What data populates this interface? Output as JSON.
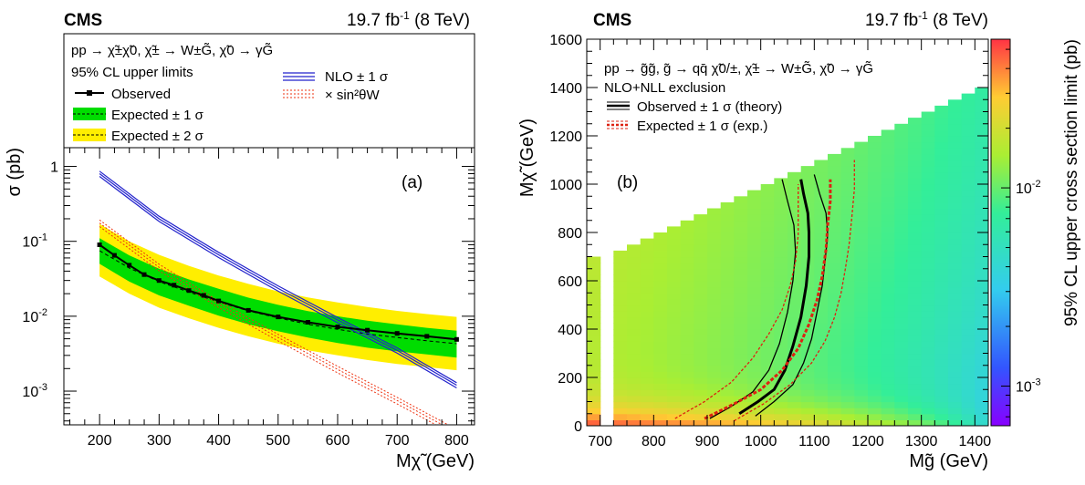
{
  "left": {
    "experiment": "CMS",
    "lumi": "19.7 fb",
    "lumi_sup": "-1",
    "energy": "(8 TeV)",
    "process": "pp → χ̃±χ̃0, χ̃± → W±G̃, χ̃0 → γG̃",
    "legend_header": "95% CL upper limits",
    "legend": {
      "observed": "Observed",
      "exp1": "Expected ± 1 σ",
      "exp2": "Expected ± 2 σ",
      "nlo": "NLO ± 1 σ",
      "sinw": "× sin²θW"
    },
    "panel_label": "(a)"
  },
  "right": {
    "experiment": "CMS",
    "lumi": "19.7 fb",
    "lumi_sup": "-1",
    "energy": "(8 TeV)",
    "process": "pp → g̃g̃, g̃ → qq̄ χ̃0/±, χ̃± → W±G̃, χ̃0 → γG̃",
    "legend_header": "NLO+NLL exclusion",
    "legend": {
      "observed": "Observed ± 1 σ (theory)",
      "expected": "Expected ± 1 σ (exp.)"
    },
    "panel_label": "(b)",
    "zlabel": "95% CL upper cross section limit (pb)"
  },
  "chart_data": [
    {
      "type": "line",
      "xlabel": "Mχ̃ (GeV)",
      "ylabel": "σ (pb)",
      "xlim": [
        140,
        830
      ],
      "ylim_log10": [
        -3.45,
        0.25
      ],
      "xticks": [
        200,
        300,
        400,
        500,
        600,
        700,
        800
      ],
      "yticks": [
        {
          "value": 1,
          "label": "1"
        },
        {
          "value": 0.1,
          "label": "10",
          "sup": "-1"
        },
        {
          "value": 0.01,
          "label": "10",
          "sup": "-2"
        },
        {
          "value": 0.001,
          "label": "10",
          "sup": "-3"
        }
      ],
      "series": [
        {
          "name": "Observed",
          "color": "#000000",
          "x": [
            200,
            225,
            250,
            275,
            300,
            325,
            350,
            375,
            400,
            450,
            500,
            550,
            600,
            650,
            700,
            750,
            800
          ],
          "y": [
            0.09,
            0.065,
            0.048,
            0.036,
            0.03,
            0.026,
            0.022,
            0.019,
            0.016,
            0.012,
            0.0098,
            0.0083,
            0.0072,
            0.0065,
            0.0059,
            0.0054,
            0.0049
          ]
        },
        {
          "name": "Expected",
          "color": "#000000",
          "x": [
            200,
            250,
            300,
            350,
            400,
            450,
            500,
            550,
            600,
            650,
            700,
            750,
            800
          ],
          "y": [
            0.075,
            0.044,
            0.029,
            0.021,
            0.0155,
            0.0118,
            0.0095,
            0.0078,
            0.0067,
            0.0058,
            0.0052,
            0.0047,
            0.0043
          ]
        },
        {
          "name": "Expected ± 1 σ",
          "color": "#00dd00",
          "x": [
            200,
            250,
            300,
            350,
            400,
            450,
            500,
            550,
            600,
            650,
            700,
            750,
            800
          ],
          "low": [
            0.05,
            0.029,
            0.019,
            0.0138,
            0.0102,
            0.0078,
            0.0063,
            0.0052,
            0.0044,
            0.0038,
            0.0034,
            0.0031,
            0.0028
          ],
          "high": [
            0.11,
            0.065,
            0.043,
            0.031,
            0.0232,
            0.0177,
            0.0142,
            0.0117,
            0.01,
            0.0087,
            0.0078,
            0.007,
            0.0064
          ]
        },
        {
          "name": "Expected ± 2 σ",
          "color": "#ffee00",
          "x": [
            200,
            250,
            300,
            350,
            400,
            450,
            500,
            550,
            600,
            650,
            700,
            750,
            800
          ],
          "low": [
            0.034,
            0.02,
            0.013,
            0.0094,
            0.007,
            0.0054,
            0.0043,
            0.0035,
            0.003,
            0.0026,
            0.0023,
            0.0021,
            0.0019
          ],
          "high": [
            0.17,
            0.1,
            0.066,
            0.047,
            0.035,
            0.027,
            0.0215,
            0.0178,
            0.0153,
            0.0133,
            0.0118,
            0.0107,
            0.0098
          ]
        },
        {
          "name": "NLO ± 1 σ",
          "color": "#2222cc",
          "x": [
            200,
            300,
            400,
            500,
            600,
            700,
            800
          ],
          "y": [
            0.8,
            0.2,
            0.066,
            0.0235,
            0.0089,
            0.0035,
            0.0012
          ]
        },
        {
          "name": "× sin²θW",
          "color": "#ee3311",
          "x": [
            200,
            300,
            400,
            500,
            600,
            700,
            800
          ],
          "y": [
            0.175,
            0.045,
            0.0145,
            0.0052,
            0.00195,
            0.00075,
            0.00028
          ]
        }
      ]
    },
    {
      "type": "heatmap",
      "xlabel": "Mg̃ (GeV)",
      "ylabel": "Mχ̃ (GeV)",
      "xlim": [
        675,
        1425
      ],
      "ylim": [
        0,
        1600
      ],
      "xticks": [
        700,
        800,
        900,
        1000,
        1100,
        1200,
        1300,
        1400
      ],
      "yticks": [
        0,
        200,
        400,
        600,
        800,
        1000,
        1200,
        1400,
        1600
      ],
      "zlim_log10": [
        -3.2,
        -1.25
      ],
      "zticks": [
        {
          "value": 0.01,
          "label": "10",
          "sup": "-2"
        },
        {
          "value": 0.001,
          "label": "10",
          "sup": "-3"
        }
      ],
      "grid_bin_width": 25,
      "top_edge": [
        [
          675,
          700
        ],
        [
          725,
          725
        ],
        [
          750,
          750
        ],
        [
          775,
          775
        ],
        [
          800,
          800
        ],
        [
          825,
          825
        ],
        [
          850,
          850
        ],
        [
          875,
          875
        ],
        [
          900,
          900
        ],
        [
          925,
          925
        ],
        [
          950,
          950
        ],
        [
          975,
          975
        ],
        [
          1000,
          1000
        ],
        [
          1025,
          1025
        ],
        [
          1050,
          1050
        ],
        [
          1075,
          1075
        ],
        [
          1100,
          1100
        ],
        [
          1125,
          1125
        ],
        [
          1150,
          1150
        ],
        [
          1175,
          1175
        ],
        [
          1200,
          1200
        ],
        [
          1225,
          1225
        ],
        [
          1250,
          1250
        ],
        [
          1275,
          1275
        ],
        [
          1300,
          1300
        ],
        [
          1325,
          1325
        ],
        [
          1350,
          1350
        ],
        [
          1375,
          1375
        ],
        [
          1400,
          1400
        ]
      ],
      "contours": [
        {
          "name": "Observed",
          "color": "#000000",
          "x": [
            960,
            995,
            1025,
            1045,
            1060,
            1075,
            1085,
            1090,
            1090,
            1088,
            1080,
            1075
          ],
          "y": [
            50,
            100,
            150,
            230,
            330,
            450,
            580,
            700,
            800,
            880,
            960,
            1020
          ]
        },
        {
          "name": "Observed - 1σ",
          "color": "#000000",
          "x": [
            905,
            945,
            985,
            1015,
            1035,
            1050,
            1060,
            1065,
            1062,
            1050,
            1040
          ],
          "y": [
            30,
            80,
            140,
            230,
            340,
            470,
            600,
            720,
            830,
            930,
            1020
          ]
        },
        {
          "name": "Observed + 1σ",
          "color": "#000000",
          "x": [
            990,
            1025,
            1060,
            1080,
            1095,
            1105,
            1115,
            1120,
            1125,
            1122,
            1110,
            1100
          ],
          "y": [
            40,
            100,
            170,
            260,
            360,
            470,
            580,
            680,
            790,
            880,
            960,
            1040
          ]
        },
        {
          "name": "Expected",
          "color": "#dd2211",
          "x": [
            895,
            950,
            1000,
            1040,
            1070,
            1090,
            1105,
            1115,
            1122,
            1125,
            1130,
            1130
          ],
          "y": [
            30,
            90,
            150,
            230,
            320,
            420,
            520,
            620,
            730,
            830,
            930,
            1020
          ]
        },
        {
          "name": "Expected - 1σ",
          "color": "#dd2211",
          "x": [
            840,
            895,
            945,
            985,
            1015,
            1040,
            1055,
            1065,
            1070,
            1070,
            1070
          ],
          "y": [
            30,
            100,
            180,
            280,
            380,
            480,
            580,
            680,
            790,
            900,
            1000
          ]
        },
        {
          "name": "Expected + 1σ",
          "color": "#dd2211",
          "x": [
            950,
            1005,
            1055,
            1095,
            1120,
            1138,
            1150,
            1158,
            1165,
            1170,
            1175,
            1175
          ],
          "y": [
            20,
            90,
            170,
            260,
            350,
            450,
            550,
            650,
            750,
            860,
            980,
            1100
          ]
        }
      ]
    }
  ]
}
